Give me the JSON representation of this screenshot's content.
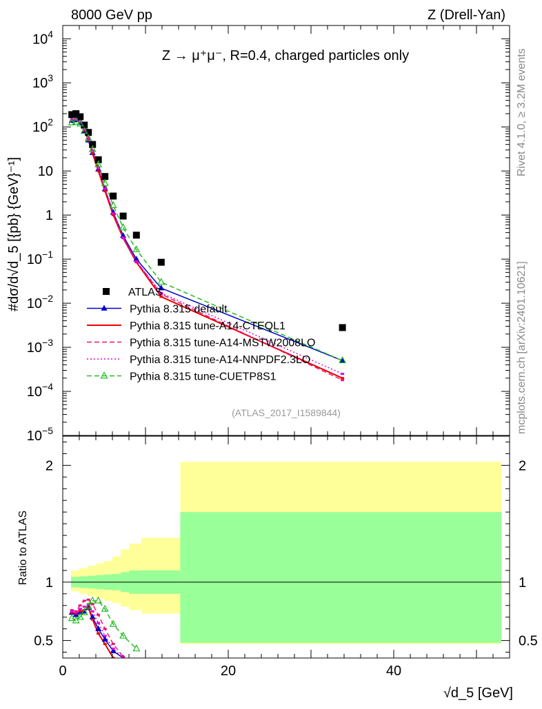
{
  "header": {
    "left": "8000 GeV pp",
    "right": "Z (Drell-Yan)"
  },
  "side": {
    "rivet": "Rivet 4.1.0, ≥ 3.2M events",
    "mcplots": "mcplots.cern.ch [arXiv:2401.10621]"
  },
  "reference_label": "(ATLAS_2017_I1589844)",
  "chart_data": [
    {
      "type": "scatter",
      "title": "Z → μ⁺μ⁻, R=0.4, charged particles only",
      "xlabel": "√d_5 [GeV]",
      "ylabel": "#dσ/d√d_5 [{pb} {GeV}⁻¹]",
      "yscale": "log",
      "xlim": [
        0,
        54
      ],
      "ylim": [
        1e-05,
        20000
      ],
      "yticks": [
        {
          "v": 10000,
          "base": "10",
          "exp": "4"
        },
        {
          "v": 1000,
          "base": "10",
          "exp": "3"
        },
        {
          "v": 100,
          "base": "10",
          "exp": "2"
        },
        {
          "v": 10,
          "base": "10",
          "exp": ""
        },
        {
          "v": 1,
          "base": "1",
          "exp": ""
        },
        {
          "v": 0.1,
          "base": "10",
          "exp": "−1"
        },
        {
          "v": 0.01,
          "base": "10",
          "exp": "−2"
        },
        {
          "v": 0.001,
          "base": "10",
          "exp": "−3"
        },
        {
          "v": 0.0001,
          "base": "10",
          "exp": "−4"
        },
        {
          "v": 1e-05,
          "base": "10",
          "exp": "−5"
        }
      ],
      "legend_position": "lower-left",
      "series": [
        {
          "name": "ATLAS",
          "color": "#000000",
          "marker": "square",
          "line": "none",
          "x": [
            1.1,
            1.6,
            2.1,
            2.6,
            3.1,
            3.6,
            4.3,
            5.1,
            6.1,
            7.3,
            8.9,
            11.9,
            33.8
          ],
          "y": [
            190,
            200,
            170,
            110,
            75,
            40,
            18,
            7.5,
            2.7,
            0.95,
            0.35,
            0.085,
            0.0028
          ]
        },
        {
          "name": "Pythia 8.315 default",
          "color": "#0000cc",
          "marker": "triangle-filled",
          "line": "solid",
          "x": [
            1.1,
            1.6,
            2.1,
            2.6,
            3.1,
            3.6,
            4.3,
            5.1,
            6.1,
            7.3,
            8.9,
            11.9,
            33.8
          ],
          "y": [
            140,
            145,
            125,
            80,
            50,
            26,
            11,
            3.9,
            1.15,
            0.34,
            0.1,
            0.022,
            0.0005
          ]
        },
        {
          "name": "Pythia 8.315 tune-A14-CTEQL1",
          "color": "#ee0000",
          "marker": "none",
          "line": "solid",
          "x": [
            1.1,
            1.6,
            2.1,
            2.6,
            3.1,
            3.6,
            4.3,
            5.1,
            6.1,
            7.3,
            8.9,
            11.9,
            33.8
          ],
          "y": [
            140,
            148,
            128,
            82,
            50,
            25,
            10,
            3.5,
            1.0,
            0.3,
            0.085,
            0.014,
            0.0002
          ]
        },
        {
          "name": "Pythia 8.315 tune-A14-MSTW2008LO",
          "color": "#ee1177",
          "marker": "none",
          "line": "dashed",
          "x": [
            1.1,
            1.6,
            2.1,
            2.6,
            3.1,
            3.6,
            4.3,
            5.1,
            6.1,
            7.3,
            8.9,
            11.9,
            33.8
          ],
          "y": [
            145,
            150,
            135,
            88,
            58,
            29,
            12,
            4.0,
            1.1,
            0.31,
            0.09,
            0.016,
            0.00018
          ]
        },
        {
          "name": "Pythia 8.315 tune-A14-NNPDF2.3LO",
          "color": "#dd00dd",
          "marker": "none",
          "line": "dotted",
          "x": [
            1.1,
            1.6,
            2.1,
            2.6,
            3.1,
            3.6,
            4.3,
            5.1,
            6.1,
            7.3,
            8.9,
            11.9,
            33.8
          ],
          "y": [
            142,
            147,
            130,
            85,
            55,
            28,
            11.5,
            3.9,
            1.08,
            0.3,
            0.088,
            0.017,
            0.00025
          ]
        },
        {
          "name": "Pythia 8.315 tune-CUETP8S1",
          "color": "#22bb22",
          "marker": "triangle-open",
          "line": "dashed",
          "x": [
            1.1,
            1.6,
            2.1,
            2.6,
            3.1,
            3.6,
            4.3,
            5.1,
            6.1,
            7.3,
            8.9,
            11.9,
            33.8
          ],
          "y": [
            125,
            130,
            118,
            80,
            55,
            31,
            14,
            5.3,
            1.65,
            0.52,
            0.165,
            0.03,
            0.0005
          ]
        }
      ]
    },
    {
      "type": "scatter",
      "xlabel": "√d_5 [GeV]",
      "ylabel": "Ratio to ATLAS",
      "xlim": [
        0,
        54
      ],
      "ylim": [
        0.35,
        2.25
      ],
      "yticks": [
        {
          "v": 0.5,
          "label": "0.5"
        },
        {
          "v": 1,
          "label": "1"
        },
        {
          "v": 2,
          "label": "2"
        }
      ],
      "xticks": [
        {
          "v": 0,
          "label": "0"
        },
        {
          "v": 20,
          "label": "20"
        },
        {
          "v": 40,
          "label": "40"
        }
      ],
      "bands": {
        "edges": [
          1.0,
          2.0,
          3.0,
          4.0,
          5.0,
          6.0,
          7.0,
          8.0,
          9.5,
          14.2,
          53.0
        ],
        "stat_lo": [
          0.955,
          0.95,
          0.945,
          0.94,
          0.935,
          0.93,
          0.915,
          0.9,
          0.9,
          0.48
        ],
        "stat_hi": [
          1.045,
          1.05,
          1.055,
          1.06,
          1.065,
          1.07,
          1.085,
          1.1,
          1.1,
          1.6
        ],
        "syst_lo": [
          0.92,
          0.9,
          0.88,
          0.86,
          0.84,
          0.82,
          0.79,
          0.76,
          0.73,
          0.47
        ],
        "syst_hi": [
          1.1,
          1.12,
          1.14,
          1.16,
          1.18,
          1.22,
          1.28,
          1.33,
          1.38,
          2.03
        ]
      },
      "series": [
        {
          "name": "Pythia 8.315 default",
          "color": "#0000cc",
          "marker": "triangle-filled",
          "line": "solid",
          "x": [
            1.1,
            1.6,
            2.1,
            2.6,
            3.1,
            3.6,
            4.3,
            5.1,
            6.1,
            7.3
          ],
          "y": [
            0.74,
            0.72,
            0.74,
            0.75,
            0.78,
            0.7,
            0.6,
            0.51,
            0.41,
            0.35
          ]
        },
        {
          "name": "Pythia 8.315 tune-A14-CTEQL1",
          "color": "#ee0000",
          "marker": "none",
          "line": "solid",
          "x": [
            1.1,
            1.6,
            2.1,
            2.6,
            3.1,
            3.6,
            4.3,
            5.1,
            6.1
          ],
          "y": [
            0.74,
            0.73,
            0.75,
            0.76,
            0.78,
            0.68,
            0.56,
            0.47,
            0.35
          ]
        },
        {
          "name": "Pythia 8.315 tune-A14-MSTW2008LO",
          "color": "#ee1177",
          "marker": "none",
          "line": "dashed",
          "x": [
            1.1,
            1.6,
            2.1,
            2.6,
            3.1,
            3.6,
            4.3,
            5.1,
            6.1,
            7.3
          ],
          "y": [
            0.76,
            0.75,
            0.8,
            0.84,
            0.85,
            0.81,
            0.72,
            0.6,
            0.47,
            0.36
          ]
        },
        {
          "name": "Pythia 8.315 tune-A14-NNPDF2.3LO",
          "color": "#dd00dd",
          "marker": "none",
          "line": "dotted",
          "x": [
            1.1,
            1.6,
            2.1,
            2.6,
            3.1,
            3.6,
            4.3,
            5.1,
            6.1,
            7.3
          ],
          "y": [
            0.75,
            0.74,
            0.77,
            0.79,
            0.81,
            0.75,
            0.65,
            0.54,
            0.43,
            0.35
          ]
        },
        {
          "name": "Pythia 8.315 tune-CUETP8S1",
          "color": "#22bb22",
          "marker": "triangle-open",
          "line": "dashed",
          "x": [
            1.1,
            1.6,
            2.1,
            2.6,
            3.1,
            3.6,
            4.3,
            5.1,
            6.1,
            7.3,
            8.9
          ],
          "y": [
            0.69,
            0.67,
            0.7,
            0.74,
            0.79,
            0.84,
            0.84,
            0.77,
            0.64,
            0.54,
            0.43
          ]
        }
      ]
    }
  ]
}
